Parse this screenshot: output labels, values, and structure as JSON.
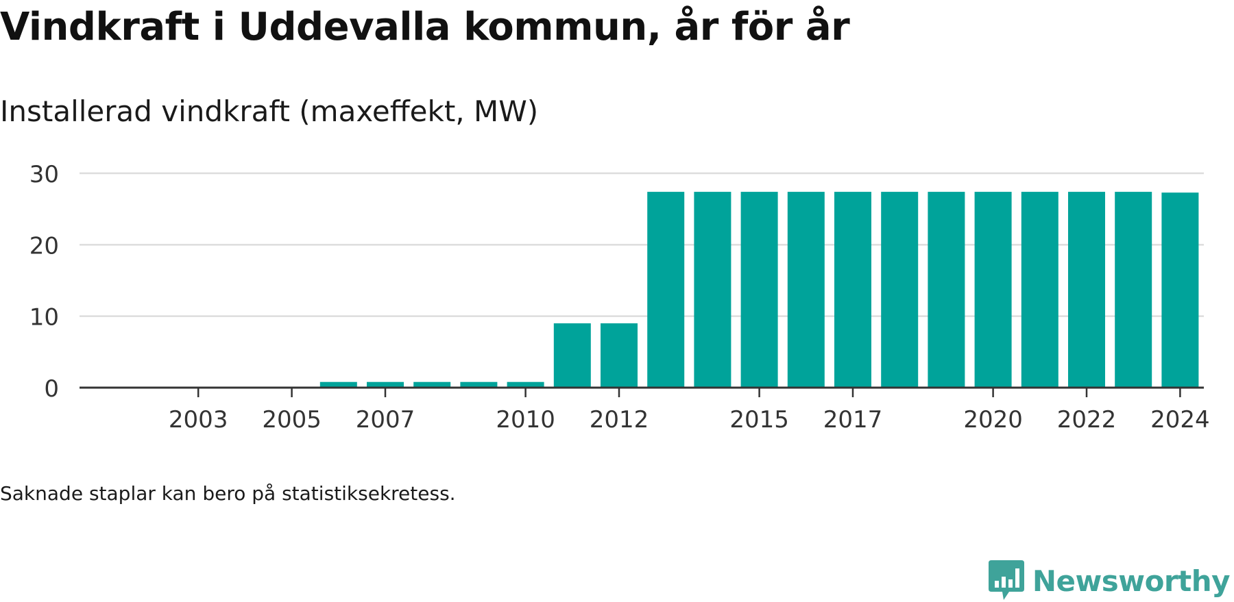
{
  "page": {
    "title": "Vindkraft i Uddevalla kommun, år för år",
    "subtitle": "Installerad vindkraft (maxeffekt, MW)",
    "footnote": "Saknade staplar kan bero på statistiksekretess.",
    "brand": "Newsworthy"
  },
  "colors": {
    "bar": "#00a39a",
    "grid": "#dddddd",
    "axis": "#333333",
    "brand": "#3fa39a",
    "text": "#111111"
  },
  "chart_data": {
    "type": "bar",
    "categories": [
      "2002",
      "2003",
      "2004",
      "2005",
      "2006",
      "2007",
      "2008",
      "2009",
      "2010",
      "2011",
      "2012",
      "2013",
      "2014",
      "2015",
      "2016",
      "2017",
      "2018",
      "2019",
      "2020",
      "2021",
      "2022",
      "2023",
      "2024"
    ],
    "values": [
      0,
      0,
      0,
      0,
      0.8,
      0.8,
      0.8,
      0.8,
      0.8,
      9.0,
      9.0,
      27.4,
      27.4,
      27.4,
      27.4,
      27.4,
      27.4,
      27.4,
      27.4,
      27.4,
      27.4,
      27.4,
      27.3
    ],
    "x_tick_labels": [
      "2003",
      "2005",
      "2007",
      "2010",
      "2012",
      "2015",
      "2017",
      "2020",
      "2022",
      "2024"
    ],
    "y_ticks": [
      0,
      10,
      20,
      30
    ],
    "ylim": [
      0,
      30
    ],
    "grid": true,
    "xlabel": "",
    "ylabel": ""
  }
}
